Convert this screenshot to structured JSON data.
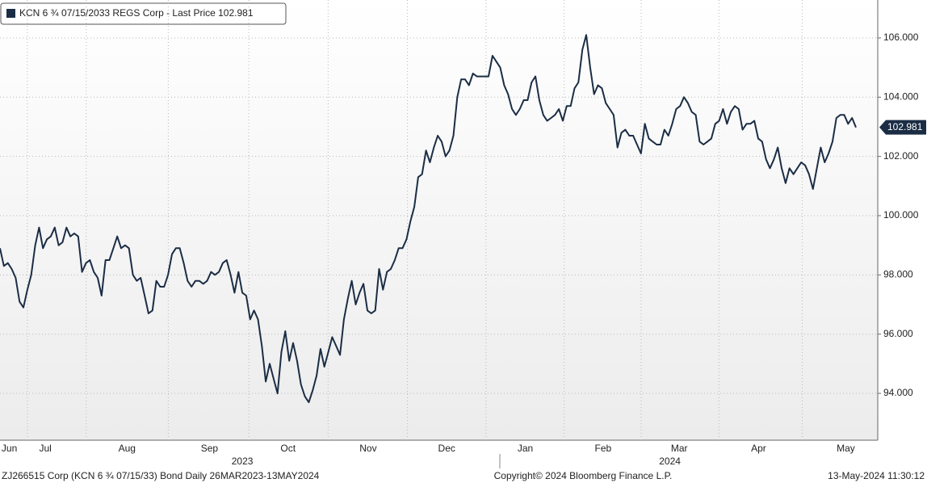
{
  "chart_data": {
    "type": "line",
    "series": [
      {
        "name": "KCN 6 ¾ 07/15/2033 REGS Corp - Last Price 102.981",
        "color": "#1b2d45",
        "last_label": "102.981",
        "values": [
          98.9,
          98.3,
          98.4,
          98.2,
          97.9,
          97.1,
          96.9,
          97.5,
          98.0,
          99.0,
          99.6,
          98.9,
          99.2,
          99.3,
          99.6,
          99.0,
          99.1,
          99.6,
          99.3,
          99.4,
          99.3,
          98.1,
          98.4,
          98.5,
          98.1,
          97.9,
          97.3,
          98.5,
          98.5,
          98.9,
          99.3,
          98.9,
          99.0,
          98.9,
          98.0,
          97.8,
          97.9,
          97.3,
          96.7,
          96.8,
          97.8,
          97.6,
          97.6,
          98.0,
          98.7,
          98.9,
          98.9,
          98.4,
          97.8,
          97.6,
          97.8,
          97.8,
          97.7,
          97.8,
          98.1,
          98.0,
          98.1,
          98.4,
          98.5,
          98.0,
          97.4,
          98.1,
          97.4,
          97.3,
          96.5,
          96.8,
          96.5,
          95.6,
          94.4,
          95.0,
          94.5,
          94.0,
          95.4,
          96.1,
          95.1,
          95.7,
          95.1,
          94.3,
          93.9,
          93.7,
          94.1,
          94.6,
          95.5,
          94.9,
          95.4,
          95.9,
          95.6,
          95.3,
          96.5,
          97.2,
          97.8,
          97.0,
          97.4,
          97.7,
          96.8,
          96.7,
          96.8,
          98.2,
          97.5,
          98.1,
          98.2,
          98.5,
          98.9,
          98.9,
          99.2,
          99.8,
          100.3,
          101.3,
          101.4,
          102.2,
          101.8,
          102.3,
          102.7,
          102.5,
          102.0,
          102.2,
          102.7,
          104.0,
          104.6,
          104.6,
          104.4,
          104.8,
          104.7,
          104.7,
          104.7,
          104.7,
          105.4,
          105.2,
          105.0,
          104.4,
          104.1,
          103.6,
          103.4,
          103.6,
          103.9,
          103.9,
          104.5,
          104.7,
          103.9,
          103.4,
          103.2,
          103.3,
          103.4,
          103.6,
          103.2,
          103.7,
          103.7,
          104.3,
          104.5,
          105.6,
          106.1,
          105.0,
          104.1,
          104.4,
          104.3,
          103.8,
          103.6,
          103.4,
          102.3,
          102.8,
          102.9,
          102.7,
          102.7,
          102.4,
          102.1,
          103.1,
          102.6,
          102.5,
          102.4,
          102.4,
          102.9,
          102.7,
          103.1,
          103.6,
          103.7,
          104.0,
          103.8,
          103.5,
          103.4,
          102.5,
          102.4,
          102.5,
          102.6,
          103.1,
          103.2,
          103.6,
          103.1,
          103.5,
          103.7,
          103.6,
          102.9,
          103.1,
          103.1,
          103.2,
          102.6,
          102.5,
          101.9,
          101.6,
          101.9,
          102.3,
          101.6,
          101.1,
          101.6,
          101.4,
          101.6,
          101.8,
          101.7,
          101.4,
          100.9,
          101.6,
          102.3,
          101.8,
          102.1,
          102.5,
          103.3,
          103.4,
          103.4,
          103.1,
          103.3,
          102.981
        ]
      }
    ],
    "ylim": [
      92.42,
      107.28
    ],
    "yticks": [
      {
        "value": 94,
        "label": "94.000"
      },
      {
        "value": 96,
        "label": "96.000"
      },
      {
        "value": 98,
        "label": "98.000"
      },
      {
        "value": 100,
        "label": "100.000"
      },
      {
        "value": 102,
        "label": "102.000"
      },
      {
        "value": 104,
        "label": "104.000"
      },
      {
        "value": 106,
        "label": "106.000"
      }
    ],
    "xticks": [
      {
        "value": 2.4,
        "label": "Jun"
      },
      {
        "value": 11.6,
        "label": "Jul"
      },
      {
        "value": 32.5,
        "label": "Aug"
      },
      {
        "value": 53.6,
        "label": "Sep"
      },
      {
        "value": 73.7,
        "label": "Oct"
      },
      {
        "value": 94.2,
        "label": "Nov"
      },
      {
        "value": 114.3,
        "label": "Dec"
      },
      {
        "value": 134.4,
        "label": "Jan"
      },
      {
        "value": 154.3,
        "label": "Feb"
      },
      {
        "value": 173.8,
        "label": "Mar"
      },
      {
        "value": 194.1,
        "label": "Apr"
      },
      {
        "value": 216.4,
        "label": "May"
      }
    ],
    "years": [
      {
        "value": 62,
        "label": "2023"
      },
      {
        "value": 171.4,
        "label": "2024"
      }
    ],
    "grid": true,
    "footer": {
      "left": "ZJ266515 Corp (KCN 6 ¾ 07/15/33) Bond  Daily 26MAR2023-13MAY2024",
      "center": "Copyright© 2024 Bloomberg Finance L.P.",
      "right": "13-May-2024 11:30:12"
    }
  }
}
